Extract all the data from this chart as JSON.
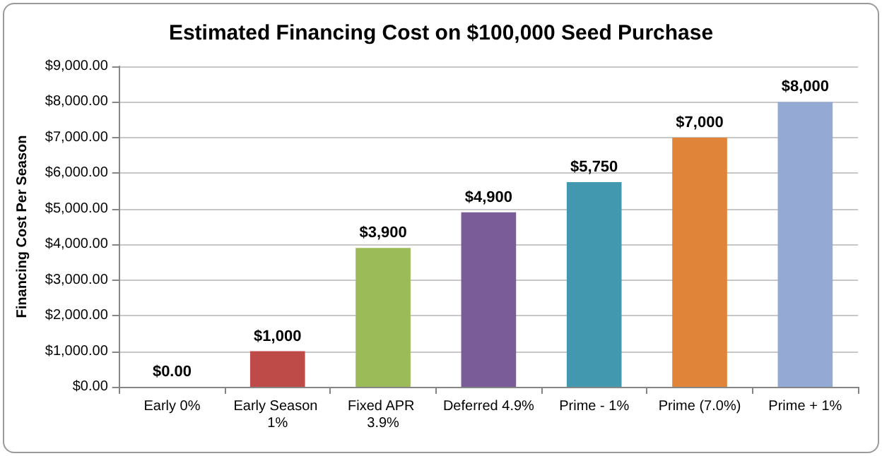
{
  "chart_data": {
    "type": "bar",
    "title": "Estimated Financing Cost on $100,000 Seed Purchase",
    "ylabel": "Financing Cost Per Season",
    "categories": [
      "Early 0%",
      "Early Season 1%",
      "Fixed APR 3.9%",
      "Deferred 4.9%",
      "Prime - 1%",
      "Prime (7.0%)",
      "Prime + 1%"
    ],
    "values": [
      0,
      1000,
      3900,
      4900,
      5750,
      7000,
      8000
    ],
    "colors": [
      "#4f81bd",
      "#be4b48",
      "#9bbb59",
      "#7a5c99",
      "#4198af",
      "#e0843a",
      "#94a9d4"
    ],
    "value_labels": [
      "$0.00",
      "$1,000",
      "$3,900",
      "$4,900",
      "$5,750",
      "$7,000",
      "$8,000"
    ],
    "ylim": [
      0,
      9000
    ],
    "yticks": [
      {
        "value": 0,
        "label": "$0.00"
      },
      {
        "value": 1000,
        "label": "$1,000.00"
      },
      {
        "value": 2000,
        "label": "$2,000.00"
      },
      {
        "value": 3000,
        "label": "$3,000.00"
      },
      {
        "value": 4000,
        "label": "$4,000.00"
      },
      {
        "value": 5000,
        "label": "$5,000.00"
      },
      {
        "value": 6000,
        "label": "$6,000.00"
      },
      {
        "value": 7000,
        "label": "$7,000.00"
      },
      {
        "value": 8000,
        "label": "$8,000.00"
      },
      {
        "value": 9000,
        "label": "$9,000.00"
      }
    ],
    "grid": "y"
  }
}
